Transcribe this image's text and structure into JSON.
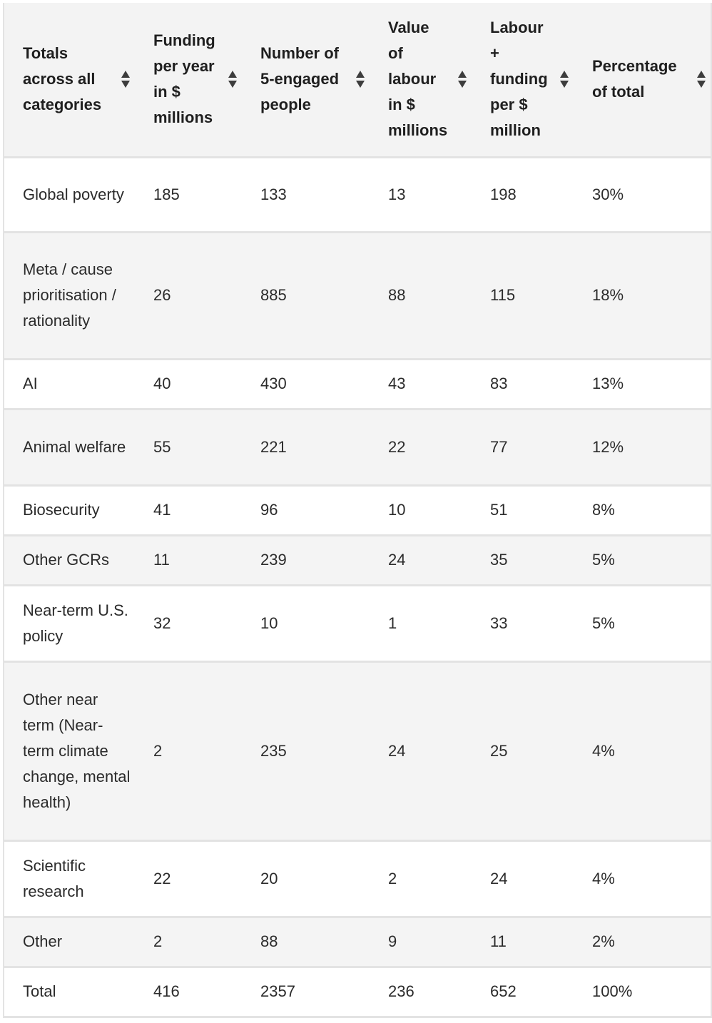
{
  "table": {
    "headers": [
      {
        "label": "Totals across all categories"
      },
      {
        "label": "Funding per year in $ millions"
      },
      {
        "label": "Number of 5-engaged people"
      },
      {
        "label": "Value of labour in $ millions"
      },
      {
        "label": "Labour + funding per $ million"
      },
      {
        "label": "Percentage of total"
      }
    ],
    "rows": [
      {
        "cells": [
          "Global poverty",
          "185",
          "133",
          "13",
          "198",
          "30%"
        ]
      },
      {
        "cells": [
          "Meta / cause prioritisation / rationality",
          "26",
          "885",
          "88",
          "115",
          "18%"
        ]
      },
      {
        "cells": [
          "AI",
          "40",
          "430",
          "43",
          "83",
          "13%"
        ]
      },
      {
        "cells": [
          "Animal welfare",
          "55",
          "221",
          "22",
          "77",
          "12%"
        ]
      },
      {
        "cells": [
          "Biosecurity",
          "41",
          "96",
          "10",
          "51",
          "8%"
        ]
      },
      {
        "cells": [
          "Other GCRs",
          "11",
          "239",
          "24",
          "35",
          "5%"
        ]
      },
      {
        "cells": [
          "Near-term U.S. policy",
          "32",
          "10",
          "1",
          "33",
          "5%"
        ]
      },
      {
        "cells": [
          "Other near term (Near-term climate change, mental health)",
          "2",
          "235",
          "24",
          "25",
          "4%"
        ]
      },
      {
        "cells": [
          "Scientific research",
          "22",
          "20",
          "2",
          "24",
          "4%"
        ]
      },
      {
        "cells": [
          "Other",
          "2",
          "88",
          "9",
          "11",
          "2%"
        ]
      },
      {
        "cells": [
          "Total",
          "416",
          "2357",
          "236",
          "652",
          "100%"
        ]
      }
    ],
    "sort_icon": "sort-up-down-icon"
  }
}
